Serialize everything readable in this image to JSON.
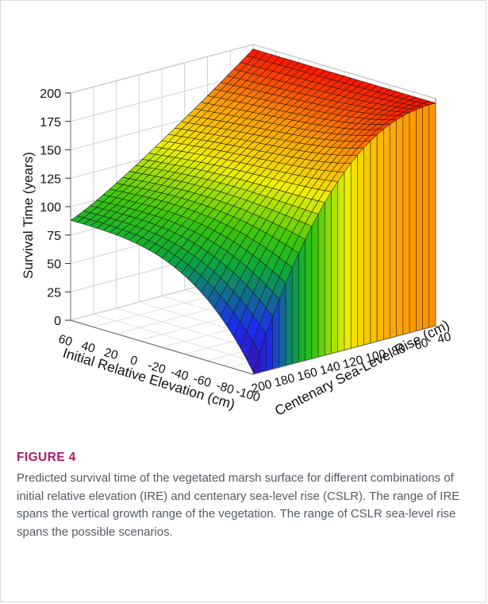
{
  "figure": {
    "label": "FIGURE 4",
    "caption": "Predicted survival time of the vegetated marsh surface for different combinations of initial relative elevation (IRE) and centenary sea-level rise (CSLR). The range of IRE spans the vertical growth range of the vegetation. The range of CSLR sea-level rise spans the possible scenarios."
  },
  "chart_data": {
    "type": "surface",
    "zlabel": "Survival Time (years)",
    "xlabel": "Initial Relative Elevation (cm)",
    "ylabel": "Centenary Sea-Level Rise (cm)",
    "x_ticks": [
      "60",
      "40",
      "20",
      "0",
      "-20",
      "-40",
      "-60",
      "-80",
      "-100"
    ],
    "y_ticks": [
      "200",
      "180",
      "160",
      "140",
      "120",
      "100",
      "80",
      "60",
      "40"
    ],
    "z_ticks": [
      "0",
      "25",
      "50",
      "75",
      "100",
      "125",
      "150",
      "175",
      "200"
    ],
    "xlim": [
      -100,
      60
    ],
    "ylim": [
      40,
      200
    ],
    "zlim": [
      0,
      200
    ],
    "grid": true,
    "colormap": [
      "#3a0ea8",
      "#1a2cf0",
      "#0aa83a",
      "#3cc80a",
      "#f0f000",
      "#ffa000",
      "#ff0000"
    ],
    "corner_values": [
      {
        "ire": 60,
        "cslr": 40,
        "survival": 196
      },
      {
        "ire": 60,
        "cslr": 200,
        "survival": 88
      },
      {
        "ire": -100,
        "cslr": 40,
        "survival": 196
      },
      {
        "ire": -100,
        "cslr": 200,
        "survival": 2
      }
    ]
  }
}
